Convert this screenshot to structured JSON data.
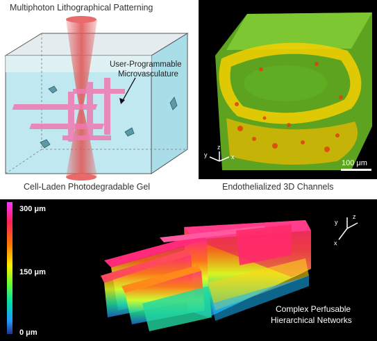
{
  "figure": {
    "panel_a": {
      "title": "Multiphoton Lithographical Patterning",
      "annotation": "User-Programmable\nMicrovasculature",
      "annotation_line1": "User-Programmable",
      "annotation_line2": "Microvasculature",
      "caption": "Cell-Laden Photodegradable Gel",
      "colors": {
        "gel": "#bfe8f0",
        "laser": "#e05858",
        "channels": "#f07ab0",
        "cells": "#5a9aa6"
      }
    },
    "panel_b": {
      "caption": "Endothelialized 3D Channels",
      "axes": {
        "y": "y",
        "z": "z",
        "x": "x"
      },
      "scale_bar": "100 μm",
      "colors": {
        "background": "#000000",
        "gel": "#7ed321",
        "cells": "#f5d000",
        "nuclei": "#e04010"
      }
    },
    "panel_c": {
      "scale_top": "300 μm",
      "scale_mid": "150 μm",
      "scale_bottom": "0 μm",
      "axes": {
        "y": "y",
        "z": "z",
        "x": "x"
      },
      "caption_line1": "Complex Perfusable",
      "caption_line2": "Hierarchical Networks",
      "colormap": [
        "#ff33ff",
        "#ff2255",
        "#ff7700",
        "#ffee00",
        "#66ff33",
        "#00ddaa",
        "#2299ff",
        "#223388"
      ]
    }
  }
}
